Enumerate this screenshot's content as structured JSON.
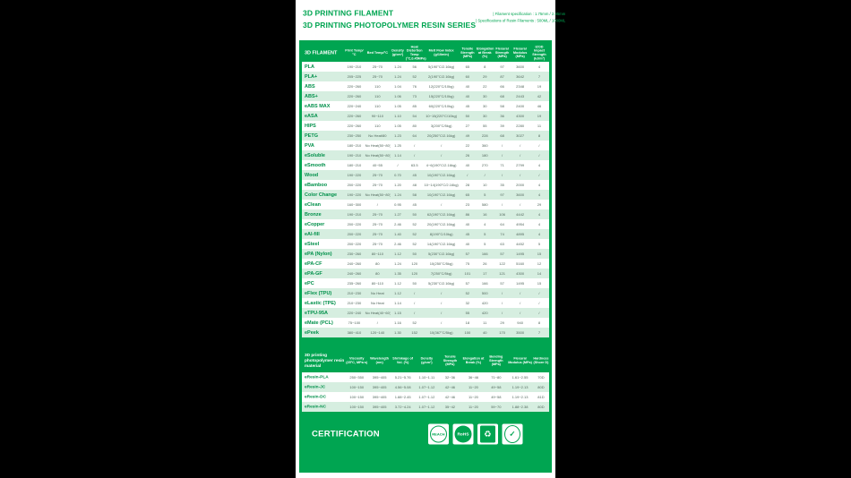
{
  "header": {
    "title_line1": "3D PRINTING FILAMENT",
    "title_line2": "3D PRINTING PHOTOPOLYMER RESIN SERIES",
    "spec_line1": "| Filament specification : 1.75mm / 2.85mm",
    "spec_line2": "| Specifications of Resin Filaments : 500ML / 1000ML"
  },
  "colors": {
    "brand_green": "#00A551",
    "row_tint": "#D6EEE0",
    "label_green": "#00904A",
    "value_text": "#50655A"
  },
  "filament_table": {
    "title": "3D FILAMENT",
    "columns": [
      "Print Temp/°C",
      "Bed Temp/°C",
      "Density (g/cm³)",
      "Heat Distortion Temp (°C,0.45MPa)",
      "Melt Flow Index (g/10min)",
      "Tensile Strength (MPa)",
      "Elongation at Break (%)",
      "Flexural Strength (MPa)",
      "Flexural Modulus (MPa)",
      "IZOD Impact Strength (kJ/m²)"
    ],
    "rows": [
      {
        "name": "PLA",
        "values": [
          "190~210",
          "25~70",
          "1.24",
          "56",
          "5(190°C/2.16kg)",
          "65",
          "8",
          "97",
          "3600",
          "4"
        ]
      },
      {
        "name": "PLA+",
        "values": [
          "205~225",
          "25~70",
          "1.24",
          "52",
          "2(190°C/2.16kg)",
          "60",
          "29",
          "87",
          "3642",
          "7"
        ]
      },
      {
        "name": "ABS",
        "values": [
          "220~260",
          "110",
          "1.04",
          "76",
          "12(220°C/10kg)",
          "40",
          "22",
          "66",
          "2348",
          "19"
        ]
      },
      {
        "name": "ABS+",
        "values": [
          "220~260",
          "110",
          "1.06",
          "73",
          "15(220°C/10kg)",
          "40",
          "30",
          "68",
          "2443",
          "42"
        ]
      },
      {
        "name": "eABS MAX",
        "values": [
          "220~240",
          "110",
          "1.05",
          "85",
          "60(220°C/10kg)",
          "45",
          "30",
          "58",
          "2400",
          "46"
        ]
      },
      {
        "name": "eASA",
        "values": [
          "220~260",
          "90~110",
          "1.10",
          "54",
          "10~15(220°C/10kg)",
          "50",
          "30",
          "36",
          "4300",
          "19"
        ]
      },
      {
        "name": "HIPS",
        "values": [
          "220~260",
          "110",
          "1.05",
          "80",
          "3(200°C/5kg)",
          "27",
          "55",
          "39",
          "2280",
          "11"
        ]
      },
      {
        "name": "PETG",
        "values": [
          "230~250",
          "No Heat/80",
          "1.23",
          "64",
          "20(250°C/2.16kg)",
          "49",
          "228",
          "68",
          "3027",
          "8"
        ]
      },
      {
        "name": "PVA",
        "values": [
          "180~210",
          "No Heat(50~80)",
          "1.25",
          "/",
          "/",
          "22",
          "360",
          "/",
          "/",
          "/"
        ]
      },
      {
        "name": "eSoluble",
        "values": [
          "190~210",
          "No Heat(50~80)",
          "1.14",
          "/",
          "/",
          "26",
          "180",
          "/",
          "/",
          "/"
        ]
      },
      {
        "name": "eSmooth",
        "values": [
          "180~210",
          "40~55",
          "/",
          "63.5",
          "4~6(190°C/2.16kg)",
          "40",
          "270",
          "71",
          "2799",
          "4"
        ]
      },
      {
        "name": "Wood",
        "values": [
          "190~220",
          "25~70",
          "0.70",
          "45",
          "10(190°C/2.16kg)",
          "/",
          "/",
          "/",
          "/",
          "/"
        ]
      },
      {
        "name": "eBamboo",
        "values": [
          "200~220",
          "25~70",
          "1.20",
          "48",
          "10~14(190°C/2.16kg)",
          "28",
          "10",
          "35",
          "2000",
          "4"
        ]
      },
      {
        "name": "Color Change",
        "values": [
          "190~220",
          "No Heat(50~80)",
          "1.24",
          "58",
          "10(190°C/2.16kg)",
          "65",
          "5",
          "97",
          "3600",
          "4"
        ]
      },
      {
        "name": "eClean",
        "values": [
          "160~300",
          "/",
          "0.95",
          "45",
          "/",
          "23",
          "580",
          "/",
          "/",
          "29"
        ]
      },
      {
        "name": "Bronze",
        "values": [
          "190~210",
          "25~70",
          "1.27",
          "50",
          "62(190°C/2.16kg)",
          "86",
          "16",
          "106",
          "4442",
          "4"
        ]
      },
      {
        "name": "eCopper",
        "values": [
          "200~220",
          "25~70",
          "2.46",
          "52",
          "20(190°C/2.16kg)",
          "40",
          "4",
          "64",
          "4954",
          "4"
        ]
      },
      {
        "name": "eAl-fill",
        "values": [
          "200~220",
          "25~70",
          "1.40",
          "52",
          "8(190°C/10kg)",
          "45",
          "5",
          "74",
          "4895",
          "4"
        ]
      },
      {
        "name": "eSteel",
        "values": [
          "200~220",
          "25~70",
          "2.46",
          "52",
          "14(190°C/2.16kg)",
          "40",
          "5",
          "63",
          "4452",
          "5"
        ]
      },
      {
        "name": "ePA (Nylon)",
        "values": [
          "230~260",
          "80~110",
          "1.12",
          "50",
          "5(230°C/2.16kg)",
          "57",
          "166",
          "57",
          "1495",
          "15"
        ]
      },
      {
        "name": "ePA-CF",
        "values": [
          "240~260",
          "80",
          "1.24",
          "120",
          "10(250°C/5kg)",
          "75",
          "26",
          "122",
          "5160",
          "12"
        ]
      },
      {
        "name": "ePA-GF",
        "values": [
          "240~260",
          "80",
          "1.35",
          "120",
          "7(250°C/5kg)",
          "101",
          "17",
          "121",
          "4300",
          "14"
        ]
      },
      {
        "name": "ePC",
        "values": [
          "235~260",
          "80~110",
          "1.12",
          "50",
          "5(230°C/2.16kg)",
          "57",
          "166",
          "57",
          "1495",
          "15"
        ]
      },
      {
        "name": "eFlex (TPU)",
        "values": [
          "210~230",
          "No Heat",
          "1.12",
          "/",
          "/",
          "52",
          "500",
          "/",
          "/",
          "/"
        ]
      },
      {
        "name": "eLastic (TPE)",
        "values": [
          "210~230",
          "No Heat",
          "1.14",
          "/",
          "/",
          "32",
          "420",
          "/",
          "/",
          "/"
        ]
      },
      {
        "name": "eTPU-95A",
        "values": [
          "220~240",
          "No Heat(40~60)",
          "1.15",
          "/",
          "/",
          "55",
          "420",
          "/",
          "/",
          "/"
        ]
      },
      {
        "name": "eMate (PCL)",
        "values": [
          "75~100",
          "/",
          "1.16",
          "52",
          "/",
          "18",
          "11",
          "29",
          "940",
          "8"
        ]
      },
      {
        "name": "ePeek",
        "values": [
          "380~410",
          "120~140",
          "1.30",
          "152",
          "10(367°C/5kg)",
          "100",
          "40",
          "170",
          "3500",
          "7"
        ]
      }
    ]
  },
  "resin_table": {
    "title": "3D printing photopolymer resin material",
    "columns": [
      "Viscosity (25°C, MPa·s)",
      "Wavelength (nm)",
      "Shrinkage of Vol. (%)",
      "Density (g/cm³)",
      "Tensile Strength (MPa)",
      "Elongation at Break (%)",
      "Bending Strength (MPa)",
      "Flexural Modulus (MPa)",
      "Hardness (Shore D)"
    ],
    "rows": [
      {
        "name": "eResin-PLA",
        "values": [
          "250~350",
          "395~405",
          "5.21~5.76",
          "1.10~1.11",
          "32~36",
          "36~46",
          "71~80",
          "1.61~2.55",
          "70D"
        ]
      },
      {
        "name": "eResin-JC",
        "values": [
          "100~150",
          "395~405",
          "4.56~5.08",
          "1.07~1.12",
          "42~46",
          "11~20",
          "49~58",
          "1.19~2.13",
          "80D"
        ]
      },
      {
        "name": "eResin-DC",
        "values": [
          "100~150",
          "395~405",
          "1.88~2.45",
          "1.07~1.12",
          "42~46",
          "11~20",
          "49~58",
          "1.19~2.13",
          "81D"
        ]
      },
      {
        "name": "eResin-NC",
        "values": [
          "100~150",
          "395~405",
          "3.72~4.24",
          "1.07~1.12",
          "35~42",
          "11~20",
          "59~70",
          "1.88~2.38",
          "80D"
        ]
      }
    ]
  },
  "certification": {
    "label": "CERTIFICATION",
    "badges": [
      "REACH",
      "RoHS",
      "",
      ""
    ]
  }
}
